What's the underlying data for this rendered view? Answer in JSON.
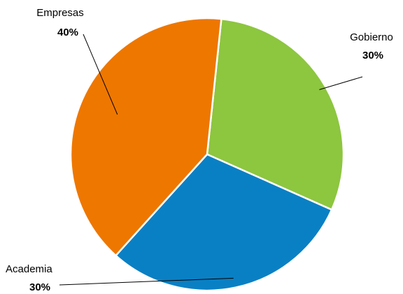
{
  "chart_data": {
    "type": "pie",
    "title": "",
    "slices": [
      {
        "label": "Empresas",
        "value": 40,
        "value_label": "40%",
        "color": "#EE7700"
      },
      {
        "label": "Gobierno",
        "value": 30,
        "value_label": "30%",
        "color": "#8DC63F"
      },
      {
        "label": "Academia",
        "value": 30,
        "value_label": "30%",
        "color": "#0A80C4"
      }
    ]
  }
}
